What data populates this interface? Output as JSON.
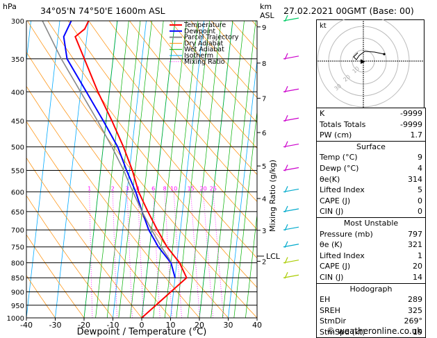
{
  "header": {
    "location": "34°05'N  74°50'E  1600m  ASL",
    "datetime": "27.02.2021  00GMT  (Base: 00)",
    "pressure_unit": "hPa",
    "km_unit": "km",
    "asl_unit": "ASL"
  },
  "footer": {
    "copyright": "© weatheronline.co.uk"
  },
  "chart_data": {
    "type": "line",
    "title": "",
    "xlabel": "Dewpoint / Temperature (°C)",
    "ylabel": "hPa",
    "y2label": "Mixing Ratio (g/kg)",
    "xlim": [
      -40,
      40
    ],
    "ylim": [
      1000,
      300
    ],
    "y_scale": "log",
    "x_ticks": [
      "-40",
      "-30",
      "-20",
      "-10",
      "0",
      "10",
      "20",
      "30",
      "40"
    ],
    "pressure_ticks": [
      "300",
      "350",
      "400",
      "450",
      "500",
      "550",
      "600",
      "650",
      "700",
      "750",
      "800",
      "850",
      "900",
      "950",
      "1000"
    ],
    "km_ticks": [
      "9",
      "8",
      "7",
      "6",
      "5",
      "4",
      "3",
      "2"
    ],
    "lcl_label": "LCL",
    "mixing_ratio_ticks": [
      "1",
      "2",
      "3",
      "4",
      "6",
      "8",
      "10",
      "15",
      "20",
      "25"
    ],
    "legend": [
      "Temperature",
      "Dewpoint",
      "Parcel Trajectory",
      "Dry Adiabat",
      "Wet Adiabat",
      "Isotherm",
      "Mixing Ratio"
    ],
    "legend_colors": [
      "#ff0000",
      "#0000ff",
      "#888888",
      "#ff8c00",
      "#00b000",
      "#00aaff",
      "#ff00ff"
    ],
    "series": [
      {
        "name": "Temperature",
        "color": "#ff0000",
        "points": [
          [
            1000,
            0
          ],
          [
            850,
            14
          ],
          [
            800,
            11
          ],
          [
            750,
            6
          ],
          [
            700,
            2
          ],
          [
            650,
            -2
          ],
          [
            600,
            -6
          ],
          [
            550,
            -9
          ],
          [
            500,
            -13
          ],
          [
            450,
            -18
          ],
          [
            400,
            -24
          ],
          [
            350,
            -30
          ],
          [
            320,
            -34
          ],
          [
            310,
            -31
          ],
          [
            300,
            -30
          ]
        ]
      },
      {
        "name": "Dewpoint",
        "color": "#0000ff",
        "points": [
          [
            850,
            10
          ],
          [
            800,
            8
          ],
          [
            750,
            3
          ],
          [
            700,
            -1
          ],
          [
            650,
            -4
          ],
          [
            600,
            -7
          ],
          [
            550,
            -11
          ],
          [
            500,
            -15
          ],
          [
            450,
            -21
          ],
          [
            400,
            -28
          ],
          [
            350,
            -36
          ],
          [
            320,
            -38
          ],
          [
            300,
            -36
          ]
        ]
      },
      {
        "name": "Parcel Trajectory",
        "color": "#888888",
        "points": [
          [
            797,
            8
          ],
          [
            750,
            4
          ],
          [
            700,
            0
          ],
          [
            650,
            -4
          ],
          [
            600,
            -8
          ],
          [
            550,
            -12
          ],
          [
            500,
            -17
          ],
          [
            450,
            -23
          ],
          [
            400,
            -30
          ],
          [
            350,
            -38
          ],
          [
            300,
            -46
          ]
        ]
      }
    ]
  },
  "hodograph": {
    "unit": "kt",
    "ring_labels": [
      "10",
      "20",
      "30"
    ]
  },
  "indices": [
    {
      "label": "K",
      "value": "-9999"
    },
    {
      "label": "Totals Totals",
      "value": "-9999"
    },
    {
      "label": "PW (cm)",
      "value": "1.7"
    }
  ],
  "surface": {
    "title": "Surface",
    "rows": [
      {
        "label": "Temp (°C)",
        "value": "9"
      },
      {
        "label": "Dewp (°C)",
        "value": "4"
      },
      {
        "label": "θe(K)",
        "value": "314"
      },
      {
        "label": "Lifted Index",
        "value": "5"
      },
      {
        "label": "CAPE (J)",
        "value": "0"
      },
      {
        "label": "CIN (J)",
        "value": "0"
      }
    ]
  },
  "most_unstable": {
    "title": "Most Unstable",
    "rows": [
      {
        "label": "Pressure (mb)",
        "value": "797"
      },
      {
        "label": "θe (K)",
        "value": "321"
      },
      {
        "label": "Lifted Index",
        "value": "1"
      },
      {
        "label": "CAPE (J)",
        "value": "20"
      },
      {
        "label": "CIN (J)",
        "value": "14"
      }
    ]
  },
  "hodo_indices": {
    "title": "Hodograph",
    "rows": [
      {
        "label": "EH",
        "value": "289"
      },
      {
        "label": "SREH",
        "value": "325"
      },
      {
        "label": "StmDir",
        "value": "269°"
      },
      {
        "label": "StmSpd (kt)",
        "value": "19"
      }
    ]
  }
}
